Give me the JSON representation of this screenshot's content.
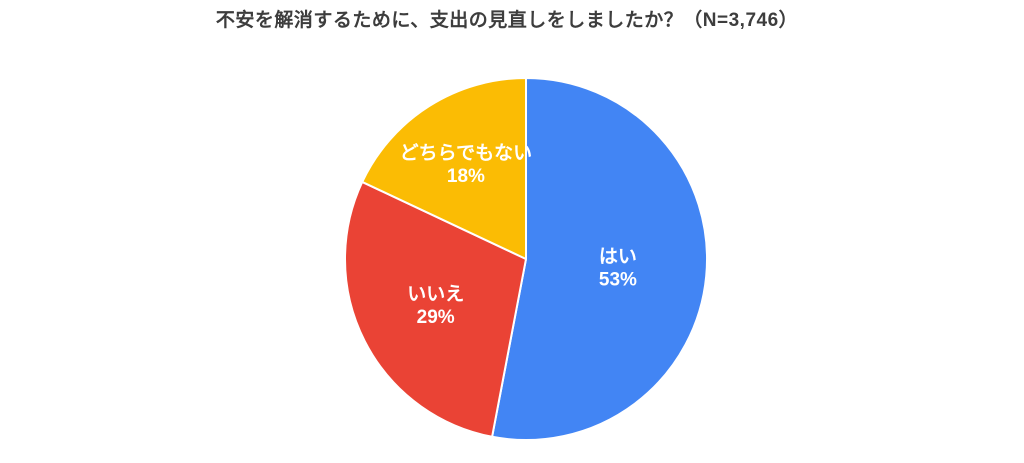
{
  "page": {
    "background_color": "#ffffff",
    "title_color": "#3d3d3d"
  },
  "chart_data": {
    "type": "pie",
    "title": "不安を解消するために、支出の見直しをしましたか？（N=3,746）",
    "sample_size_label": "N=3,746",
    "labels": [
      "はい",
      "いいえ",
      "どちらでもない"
    ],
    "values": [
      53,
      29,
      18
    ],
    "percent_labels": [
      "53%",
      "29%",
      "18%"
    ],
    "colors": [
      "#4285F4",
      "#EA4335",
      "#FBBC04"
    ],
    "slice_border_color": "#ffffff",
    "label_text_color": "#ffffff",
    "start_angle_deg_from_top": 0,
    "direction": "clockwise",
    "legend_position": "none",
    "label_radius_fractions": [
      0.51,
      0.56,
      0.62
    ]
  }
}
